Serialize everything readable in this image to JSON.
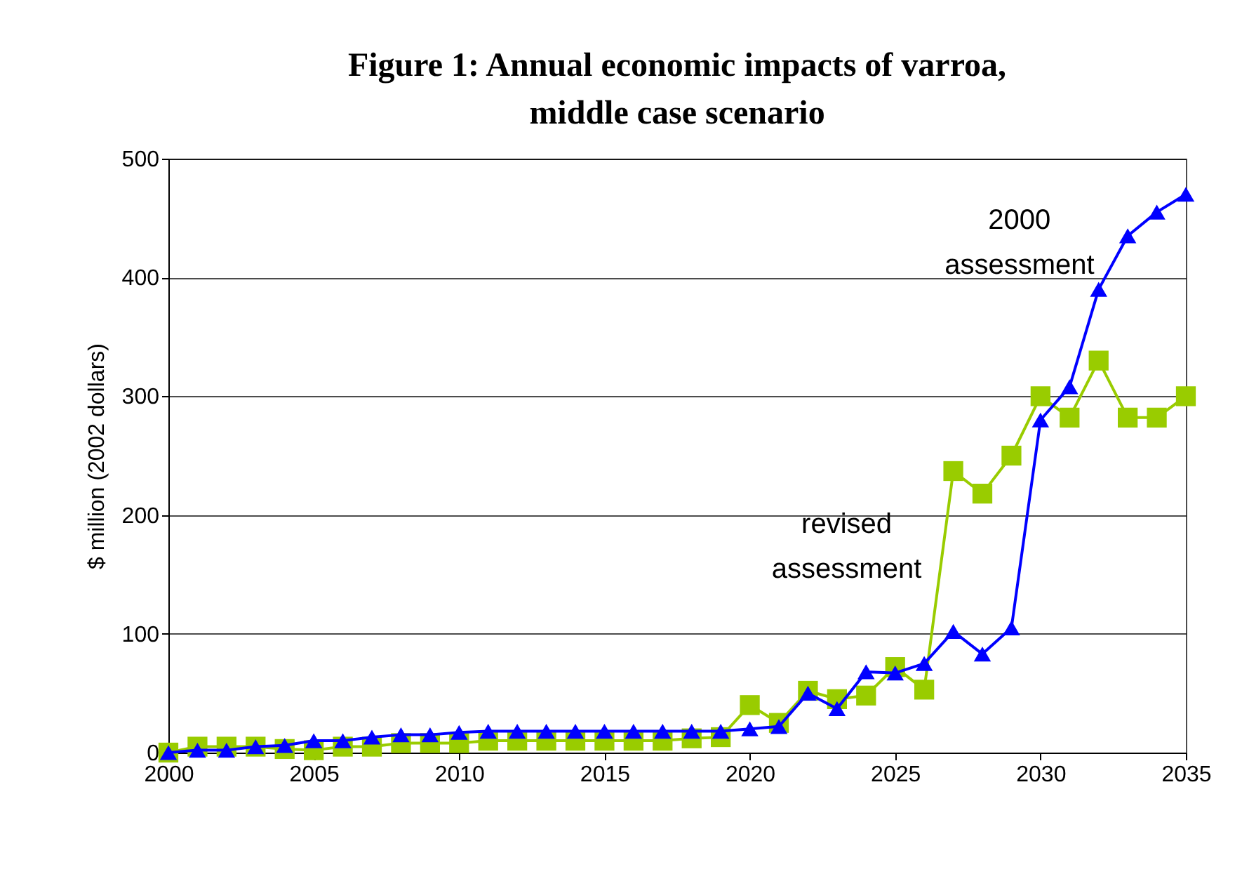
{
  "chart_data": {
    "type": "line",
    "title": "Figure 1: Annual economic impacts of varroa, middle case scenario",
    "ylabel": "$ million (2002 dollars)",
    "x": [
      2000,
      2001,
      2002,
      2003,
      2004,
      2005,
      2006,
      2007,
      2008,
      2009,
      2010,
      2011,
      2012,
      2013,
      2014,
      2015,
      2016,
      2017,
      2018,
      2019,
      2020,
      2021,
      2022,
      2023,
      2024,
      2025,
      2026,
      2027,
      2028,
      2029,
      2030,
      2031,
      2032,
      2033,
      2034,
      2035
    ],
    "series": [
      {
        "name": "revised assessment",
        "color": "#99cc00",
        "marker": "square",
        "values": [
          0,
          5,
          5,
          5,
          3,
          2,
          5,
          5,
          8,
          8,
          8,
          10,
          10,
          10,
          10,
          10,
          10,
          10,
          12,
          13,
          40,
          25,
          52,
          45,
          48,
          72,
          53,
          237,
          218,
          250,
          300,
          282,
          330,
          282,
          282,
          300
        ]
      },
      {
        "name": "2000 assessment",
        "color": "#0000ff",
        "marker": "triangle",
        "values": [
          0,
          2,
          2,
          5,
          6,
          10,
          10,
          13,
          15,
          15,
          17,
          18,
          18,
          18,
          18,
          18,
          18,
          18,
          18,
          18,
          20,
          22,
          50,
          37,
          68,
          67,
          75,
          102,
          83,
          105,
          280,
          308,
          390,
          435,
          455,
          470
        ]
      }
    ],
    "xlim": [
      2000,
      2035
    ],
    "xticks": [
      2000,
      2005,
      2010,
      2015,
      2020,
      2025,
      2030,
      2035
    ],
    "ylim": [
      0,
      500
    ],
    "yticks": [
      0,
      100,
      200,
      300,
      400,
      500
    ],
    "grid": "y",
    "legend": false
  }
}
